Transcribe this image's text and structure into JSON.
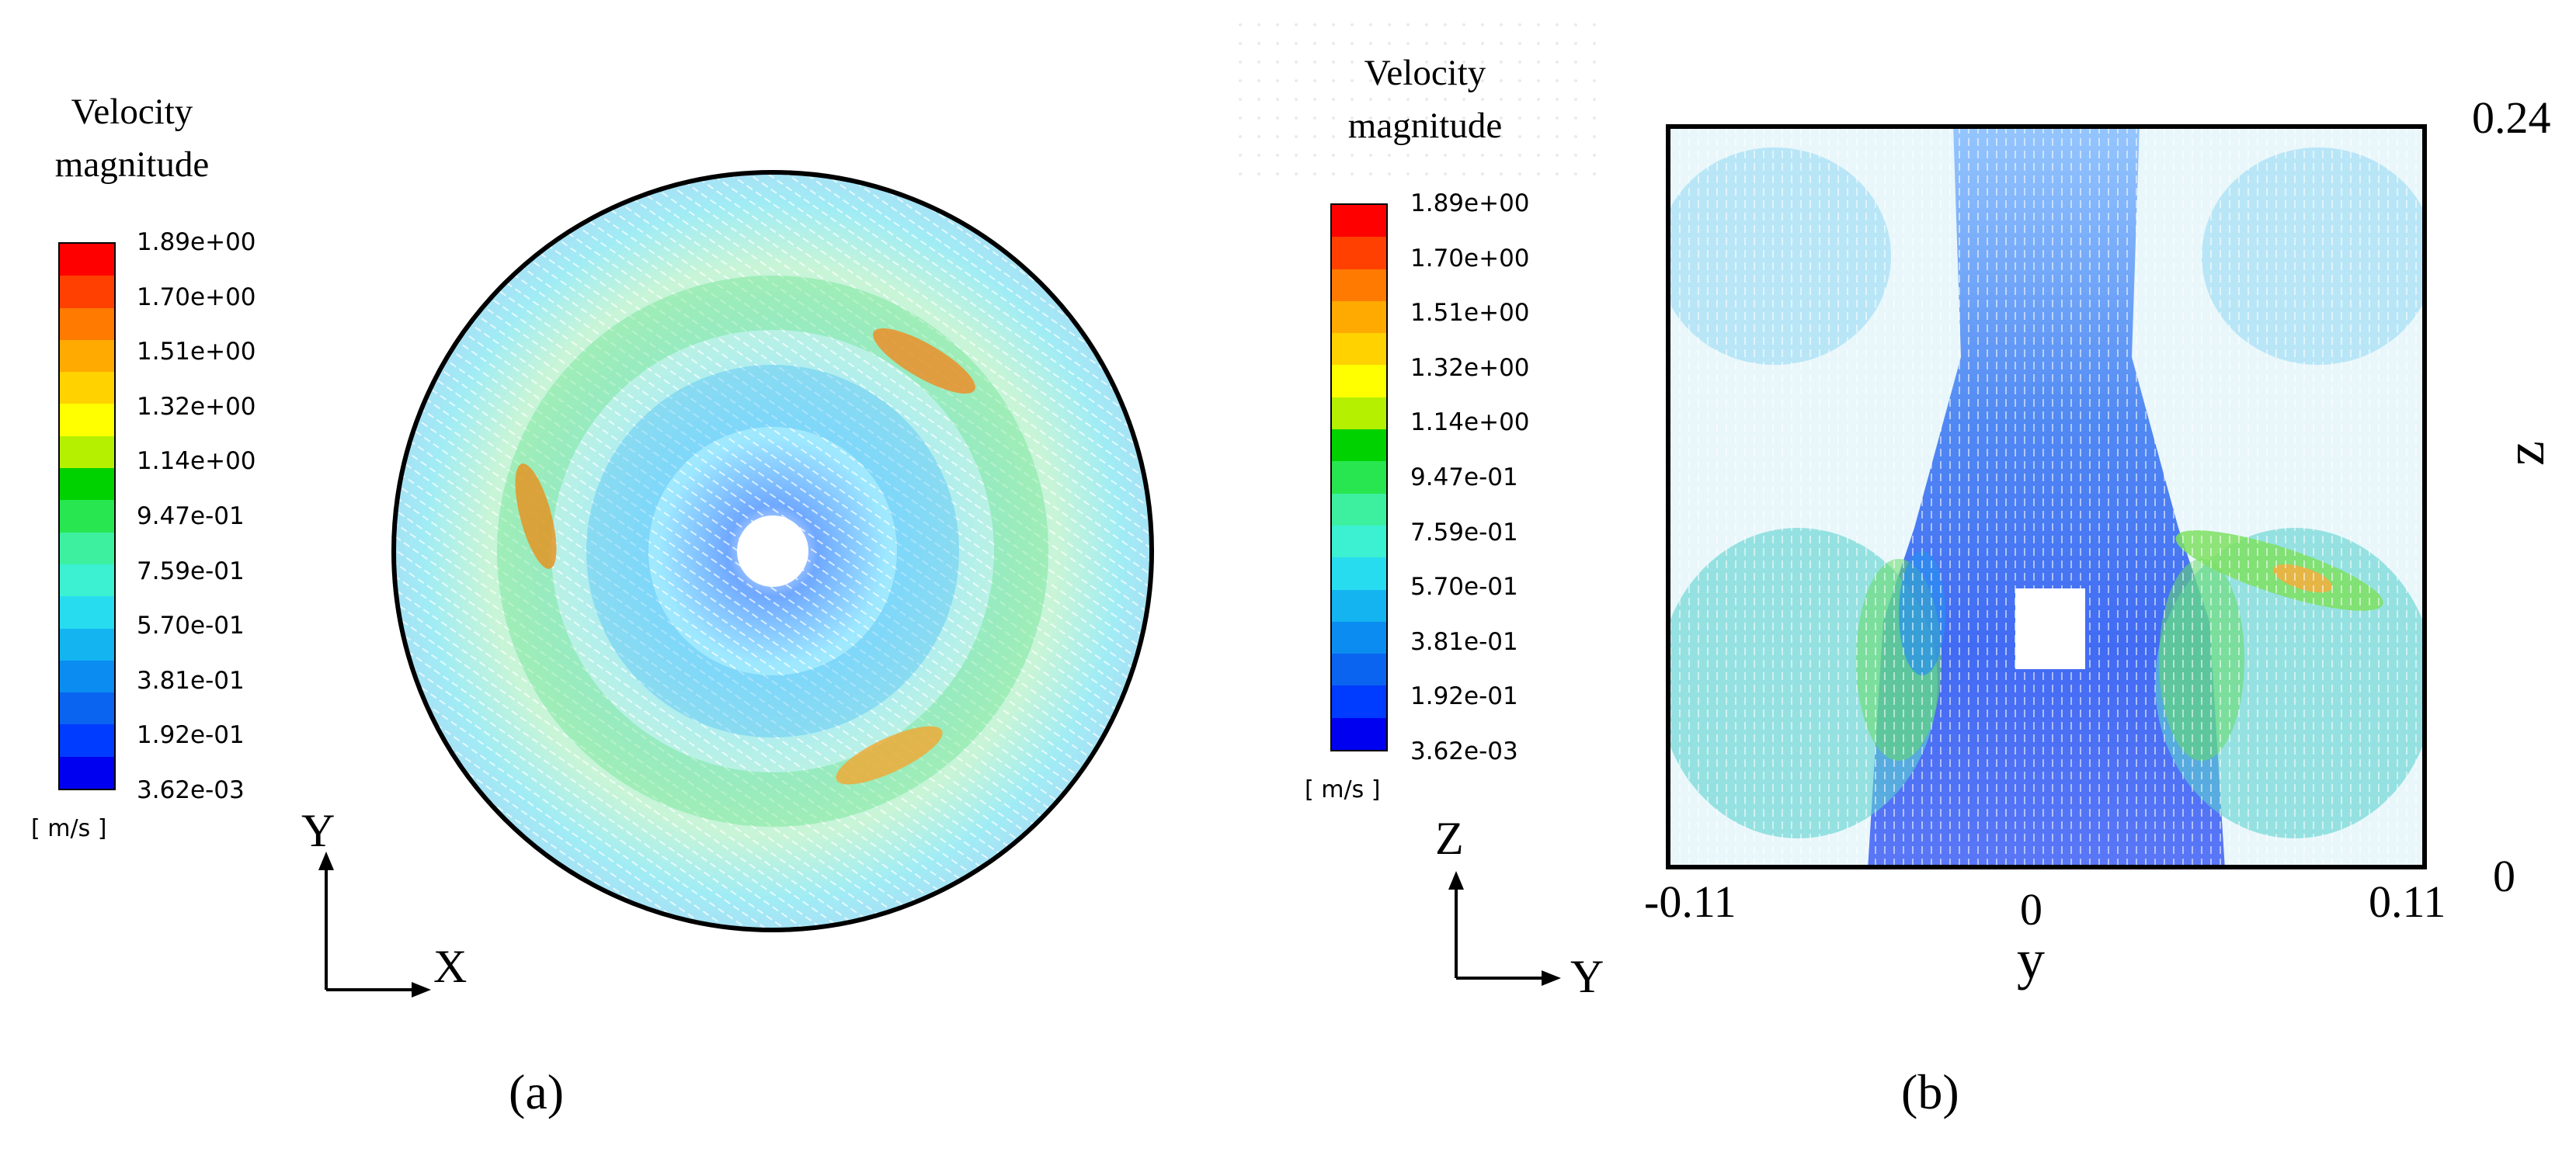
{
  "colorbar": {
    "title_line1": "Velocity",
    "title_line2": "magnitude",
    "labels": [
      "1.89e+00",
      "1.70e+00",
      "1.51e+00",
      "1.32e+00",
      "1.14e+00",
      "9.47e-01",
      "7.59e-01",
      "5.70e-01",
      "3.81e-01",
      "1.92e-01",
      "3.62e-03"
    ],
    "unit": "[ m/s ]",
    "colors": [
      "#ff0000",
      "#ff4000",
      "#ff7a00",
      "#ffaa00",
      "#ffd200",
      "#ffff00",
      "#b4f000",
      "#00d200",
      "#28e650",
      "#3cf0a0",
      "#3cf0d2",
      "#28dcf0",
      "#14b4f0",
      "#0a8cf0",
      "#0a64f0",
      "#003cff",
      "#0000f0"
    ]
  },
  "panel_a": {
    "axis_vertical": "Y",
    "axis_horizontal": "X",
    "label": "(a)"
  },
  "panel_b": {
    "axis_vertical": "Z",
    "axis_horizontal": "Y",
    "label": "(b)",
    "y_ticks": [
      "-0.11",
      "0",
      "0.11"
    ],
    "z_ticks": [
      "0.24",
      "0"
    ],
    "xlabel": "y",
    "ylabel": "z"
  }
}
